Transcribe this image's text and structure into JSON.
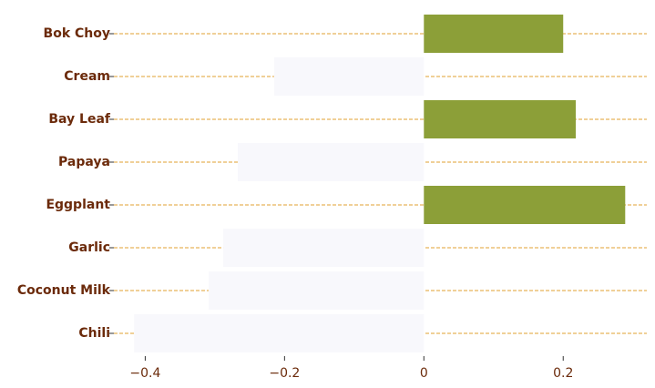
{
  "chart_data": {
    "type": "bar",
    "orientation": "horizontal",
    "categories": [
      "Bok Choy",
      "Cream",
      "Bay Leaf",
      "Papaya",
      "Eggplant",
      "Garlic",
      "Coconut Milk",
      "Chili"
    ],
    "values": [
      0.2,
      -0.215,
      0.218,
      -0.267,
      0.289,
      -0.288,
      -0.309,
      -0.416
    ],
    "x_ticks": [
      -0.4,
      -0.2,
      0,
      0.2
    ],
    "x_tick_labels": [
      "−0.4",
      "−0.2",
      "0",
      "0.2"
    ],
    "xlim": [
      -0.445,
      0.32
    ],
    "xlabel": "",
    "ylabel": "",
    "title": "",
    "grid": "horizontal dashed",
    "colors": {
      "positive": "#8c9f38",
      "negative": "#f8f8fc",
      "grid": "#e0a030",
      "text": "#6b2a0a"
    }
  }
}
